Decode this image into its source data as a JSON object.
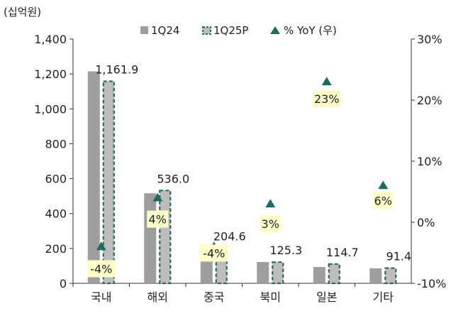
{
  "chart_data": {
    "type": "bar",
    "unit_label": "(십억원)",
    "categories": [
      "국내",
      "해외",
      "중국",
      "북미",
      "일본",
      "기타"
    ],
    "series": [
      {
        "name": "1Q24",
        "values": [
          1215,
          516,
          213,
          122,
          94,
          86
        ],
        "color": "#9e9e9e"
      },
      {
        "name": "1Q25P",
        "values": [
          1161.9,
          536.0,
          204.6,
          125.3,
          114.7,
          91.4
        ],
        "color": "#bdbdbd",
        "border": "#2e6b5e"
      }
    ],
    "value_labels": [
      "1,161.9",
      "536.0",
      "204.6",
      "125.3",
      "114.7",
      "91.4"
    ],
    "yoy": {
      "name": "% YoY (우)",
      "values": [
        -4,
        4,
        -4,
        3,
        23,
        6
      ],
      "labels": [
        "-4%",
        "4%",
        "-4%",
        "3%",
        "23%",
        "6%"
      ],
      "color": "#1f6b62",
      "label_bg": "#ffffcc"
    },
    "left_axis": {
      "min": 0,
      "max": 1400,
      "step": 200,
      "tick_labels": [
        "0",
        "200",
        "400",
        "600",
        "800",
        "1,000",
        "1,200",
        "1,400"
      ]
    },
    "right_axis": {
      "min": -10,
      "max": 30,
      "step": 10,
      "tick_labels": [
        "-10%",
        "0%",
        "10%",
        "20%",
        "30%"
      ]
    },
    "legend_position": "top",
    "grid": false
  }
}
